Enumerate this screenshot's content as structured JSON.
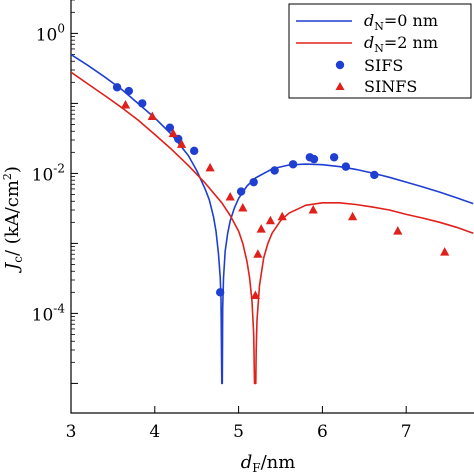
{
  "chart_data": {
    "type": "line",
    "title": "",
    "xlabel": "d_F/nm",
    "ylabel": "J_c/(kA/cm^2)",
    "yscale": "log",
    "xlim": [
      3,
      7.8
    ],
    "ylim": [
      1e-05,
      3
    ],
    "x_ticks": [
      3,
      4,
      5,
      6,
      7
    ],
    "y_ticks": [
      {
        "value": 1,
        "label": "10",
        "exp": "0"
      },
      {
        "value": 0.01,
        "label": "10",
        "exp": "-2"
      },
      {
        "value": 0.0001,
        "label": "10",
        "exp": "-4"
      }
    ],
    "grid": false,
    "legend": {
      "position": "top-right",
      "entries": [
        {
          "label": "d_N=0 nm",
          "color": "#1f3fd1",
          "marker": "line"
        },
        {
          "label": "d_N=2 nm",
          "color": "#e0201b",
          "marker": "line"
        },
        {
          "label": "SIFS",
          "color": "#1f3fd1",
          "marker": "circle"
        },
        {
          "label": "SINFS",
          "color": "#e0201b",
          "marker": "triangle"
        }
      ]
    },
    "series": [
      {
        "name": "d_N=0 nm",
        "kind": "line",
        "color": "#1f3fd1",
        "x": [
          3.0,
          3.2,
          3.4,
          3.6,
          3.8,
          4.0,
          4.2,
          4.4,
          4.5,
          4.6,
          4.65,
          4.7,
          4.73,
          4.76,
          4.78,
          4.79,
          4.8,
          4.805,
          4.81,
          4.82,
          4.84,
          4.87,
          4.9,
          4.95,
          5.0,
          5.1,
          5.2,
          5.4,
          5.6,
          5.8,
          6.0,
          6.2,
          6.4,
          6.6,
          6.8,
          7.0,
          7.2,
          7.4,
          7.6,
          7.8
        ],
        "y": [
          0.5,
          0.35,
          0.24,
          0.16,
          0.1,
          0.062,
          0.036,
          0.018,
          0.011,
          0.006,
          0.0042,
          0.0024,
          0.0015,
          0.0007,
          0.00033,
          0.00016,
          1e-05,
          1e-05,
          0.00012,
          0.00032,
          0.00078,
          0.0014,
          0.0021,
          0.0032,
          0.0044,
          0.0066,
          0.0086,
          0.0116,
          0.0132,
          0.0136,
          0.0133,
          0.0125,
          0.0114,
          0.0101,
          0.0088,
          0.0075,
          0.0064,
          0.0054,
          0.0045,
          0.0037
        ]
      },
      {
        "name": "d_N=2 nm",
        "kind": "line",
        "color": "#e0201b",
        "x": [
          3.0,
          3.2,
          3.4,
          3.6,
          3.8,
          4.0,
          4.2,
          4.4,
          4.6,
          4.8,
          4.9,
          5.0,
          5.05,
          5.1,
          5.13,
          5.16,
          5.18,
          5.19,
          5.2,
          5.205,
          5.21,
          5.22,
          5.25,
          5.3,
          5.35,
          5.4,
          5.5,
          5.6,
          5.8,
          6.0,
          6.2,
          6.4,
          6.6,
          6.8,
          7.0,
          7.2,
          7.4,
          7.6,
          7.8
        ],
        "y": [
          0.28,
          0.19,
          0.13,
          0.088,
          0.058,
          0.036,
          0.022,
          0.013,
          0.0073,
          0.0038,
          0.0025,
          0.0015,
          0.001,
          0.00055,
          0.00033,
          0.00015,
          5e-05,
          1e-05,
          1e-05,
          1e-05,
          3e-05,
          8e-05,
          0.00025,
          0.00062,
          0.001,
          0.0014,
          0.0021,
          0.0027,
          0.0035,
          0.0038,
          0.0038,
          0.0036,
          0.0033,
          0.003,
          0.0026,
          0.0023,
          0.002,
          0.0017,
          0.0014
        ]
      },
      {
        "name": "SIFS",
        "kind": "scatter",
        "marker": "circle",
        "color": "#1f3fd1",
        "x": [
          3.55,
          3.69,
          3.85,
          4.18,
          4.28,
          4.47,
          4.78,
          5.03,
          5.18,
          5.43,
          5.65,
          5.85,
          5.9,
          6.14,
          6.28,
          6.62
        ],
        "y": [
          0.17,
          0.15,
          0.1,
          0.045,
          0.031,
          0.021,
          0.0002,
          0.0055,
          0.0075,
          0.011,
          0.0135,
          0.017,
          0.016,
          0.017,
          0.0125,
          0.0095
        ]
      },
      {
        "name": "SINFS",
        "kind": "scatter",
        "marker": "triangle",
        "color": "#e0201b",
        "x": [
          3.65,
          3.97,
          4.22,
          4.32,
          4.66,
          4.9,
          5.05,
          5.2,
          5.23,
          5.27,
          5.38,
          5.52,
          5.89,
          6.36,
          6.9,
          7.46
        ],
        "y": [
          0.095,
          0.065,
          0.037,
          0.026,
          0.012,
          0.0046,
          0.0032,
          0.00018,
          0.0007,
          0.0016,
          0.0021,
          0.0024,
          0.003,
          0.0024,
          0.0015,
          0.00075
        ]
      }
    ]
  }
}
